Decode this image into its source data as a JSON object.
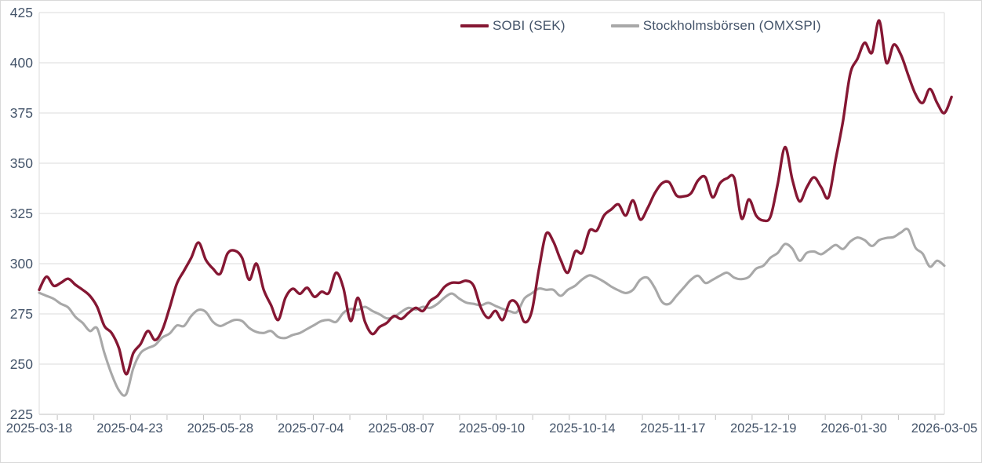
{
  "chart_data": {
    "type": "line",
    "title": "",
    "xlabel": "",
    "ylabel": "",
    "grid": "horizontal",
    "legend_position": "top-center",
    "ylim": [
      225,
      425
    ],
    "y_ticks": [
      225,
      250,
      275,
      300,
      325,
      350,
      375,
      400,
      425
    ],
    "x_tick_labels": [
      "2025-03-18",
      "2025-04-23",
      "2025-05-28",
      "2025-07-04",
      "2025-08-07",
      "2025-09-10",
      "2025-10-14",
      "2025-11-17",
      "2025-12-19",
      "2026-01-30",
      "2026-03-05"
    ],
    "x_unit": "trading-day index from 2025-03-18",
    "x_range_days": [
      0,
      250
    ],
    "sample_step_days": 2,
    "series": [
      {
        "name": "SOBI (SEK)",
        "color": "#851733",
        "values": [
          287,
          293.5,
          289,
          290.5,
          292.5,
          289.5,
          287,
          284,
          278.5,
          269,
          265.5,
          258,
          245,
          255.5,
          260,
          266.5,
          262,
          267,
          278,
          290,
          296.5,
          303,
          310.5,
          302,
          297.5,
          295,
          305,
          306.5,
          303,
          292,
          300,
          287,
          279.5,
          272,
          283,
          287.5,
          285,
          288,
          283.5,
          286,
          285.5,
          295.5,
          288,
          271.5,
          283,
          271,
          265,
          268.5,
          270.5,
          274,
          272.5,
          275.5,
          278,
          276.5,
          281.5,
          284,
          288.5,
          290.5,
          290.5,
          291.5,
          289,
          278,
          273,
          276.5,
          272,
          281,
          280,
          271,
          276,
          297,
          314.8,
          311,
          302,
          295.5,
          306,
          305.5,
          316.5,
          316.5,
          324,
          327,
          329.5,
          324,
          331.5,
          322,
          327.5,
          335,
          340,
          340.5,
          334,
          333.5,
          335,
          341.5,
          343,
          333,
          340,
          342.5,
          342.5,
          322.5,
          332,
          324,
          321.5,
          323.5,
          340,
          358,
          342,
          331,
          338,
          343,
          338,
          333,
          352,
          371,
          394.5,
          402,
          410,
          405,
          421,
          400,
          409,
          404,
          394,
          384.5,
          380,
          387,
          380,
          375,
          383
        ]
      },
      {
        "name": "Stockholmsbörsen (OMXSPI)",
        "color": "#a8a8a8",
        "values": [
          285.5,
          284,
          282.5,
          280,
          278.2,
          273.5,
          270.5,
          266.5,
          267.8,
          255.5,
          245,
          237,
          235,
          248,
          255.5,
          258,
          259.5,
          263.3,
          265.2,
          269.2,
          269,
          274,
          277,
          276,
          271,
          269,
          270.5,
          272,
          271.5,
          268,
          266,
          265.5,
          266.5,
          263.5,
          263,
          264.5,
          265.5,
          267.5,
          269.5,
          271.5,
          272,
          271,
          275.5,
          277.5,
          277,
          278.5,
          276.5,
          274.8,
          272.8,
          273.5,
          276,
          278,
          277.2,
          278.5,
          278,
          280,
          283.2,
          285.1,
          282.6,
          280.6,
          280,
          279.3,
          280.5,
          279,
          277.5,
          276.3,
          276,
          282.6,
          285.2,
          287.6,
          287,
          287,
          284,
          287,
          289,
          292.2,
          294.2,
          293,
          291,
          288.6,
          286.7,
          285.4,
          287,
          292,
          293,
          288,
          281,
          280,
          284,
          288,
          292,
          294,
          290.4,
          292,
          294,
          295.5,
          293,
          292.3,
          293.4,
          297.5,
          299,
          303,
          305.4,
          309.8,
          307.5,
          301.5,
          305.4,
          306,
          304.7,
          307,
          309.3,
          307.3,
          311,
          313,
          311.7,
          308.8,
          311.7,
          312.8,
          313.3,
          315.5,
          317,
          308,
          305,
          298.5,
          301.5,
          299
        ]
      }
    ]
  },
  "legend": {
    "sobi_label": "SOBI (SEK)",
    "omxspi_label": "Stockholmsbörsen (OMXSPI)"
  },
  "colors": {
    "sobi_line": "#851733",
    "omxspi_line": "#a8a8a8",
    "gridline": "#dbdbdb",
    "axis_line": "#bfbfbf",
    "tick": "#c0c0c0",
    "label_text": "#44546a",
    "background": "#ffffff"
  }
}
